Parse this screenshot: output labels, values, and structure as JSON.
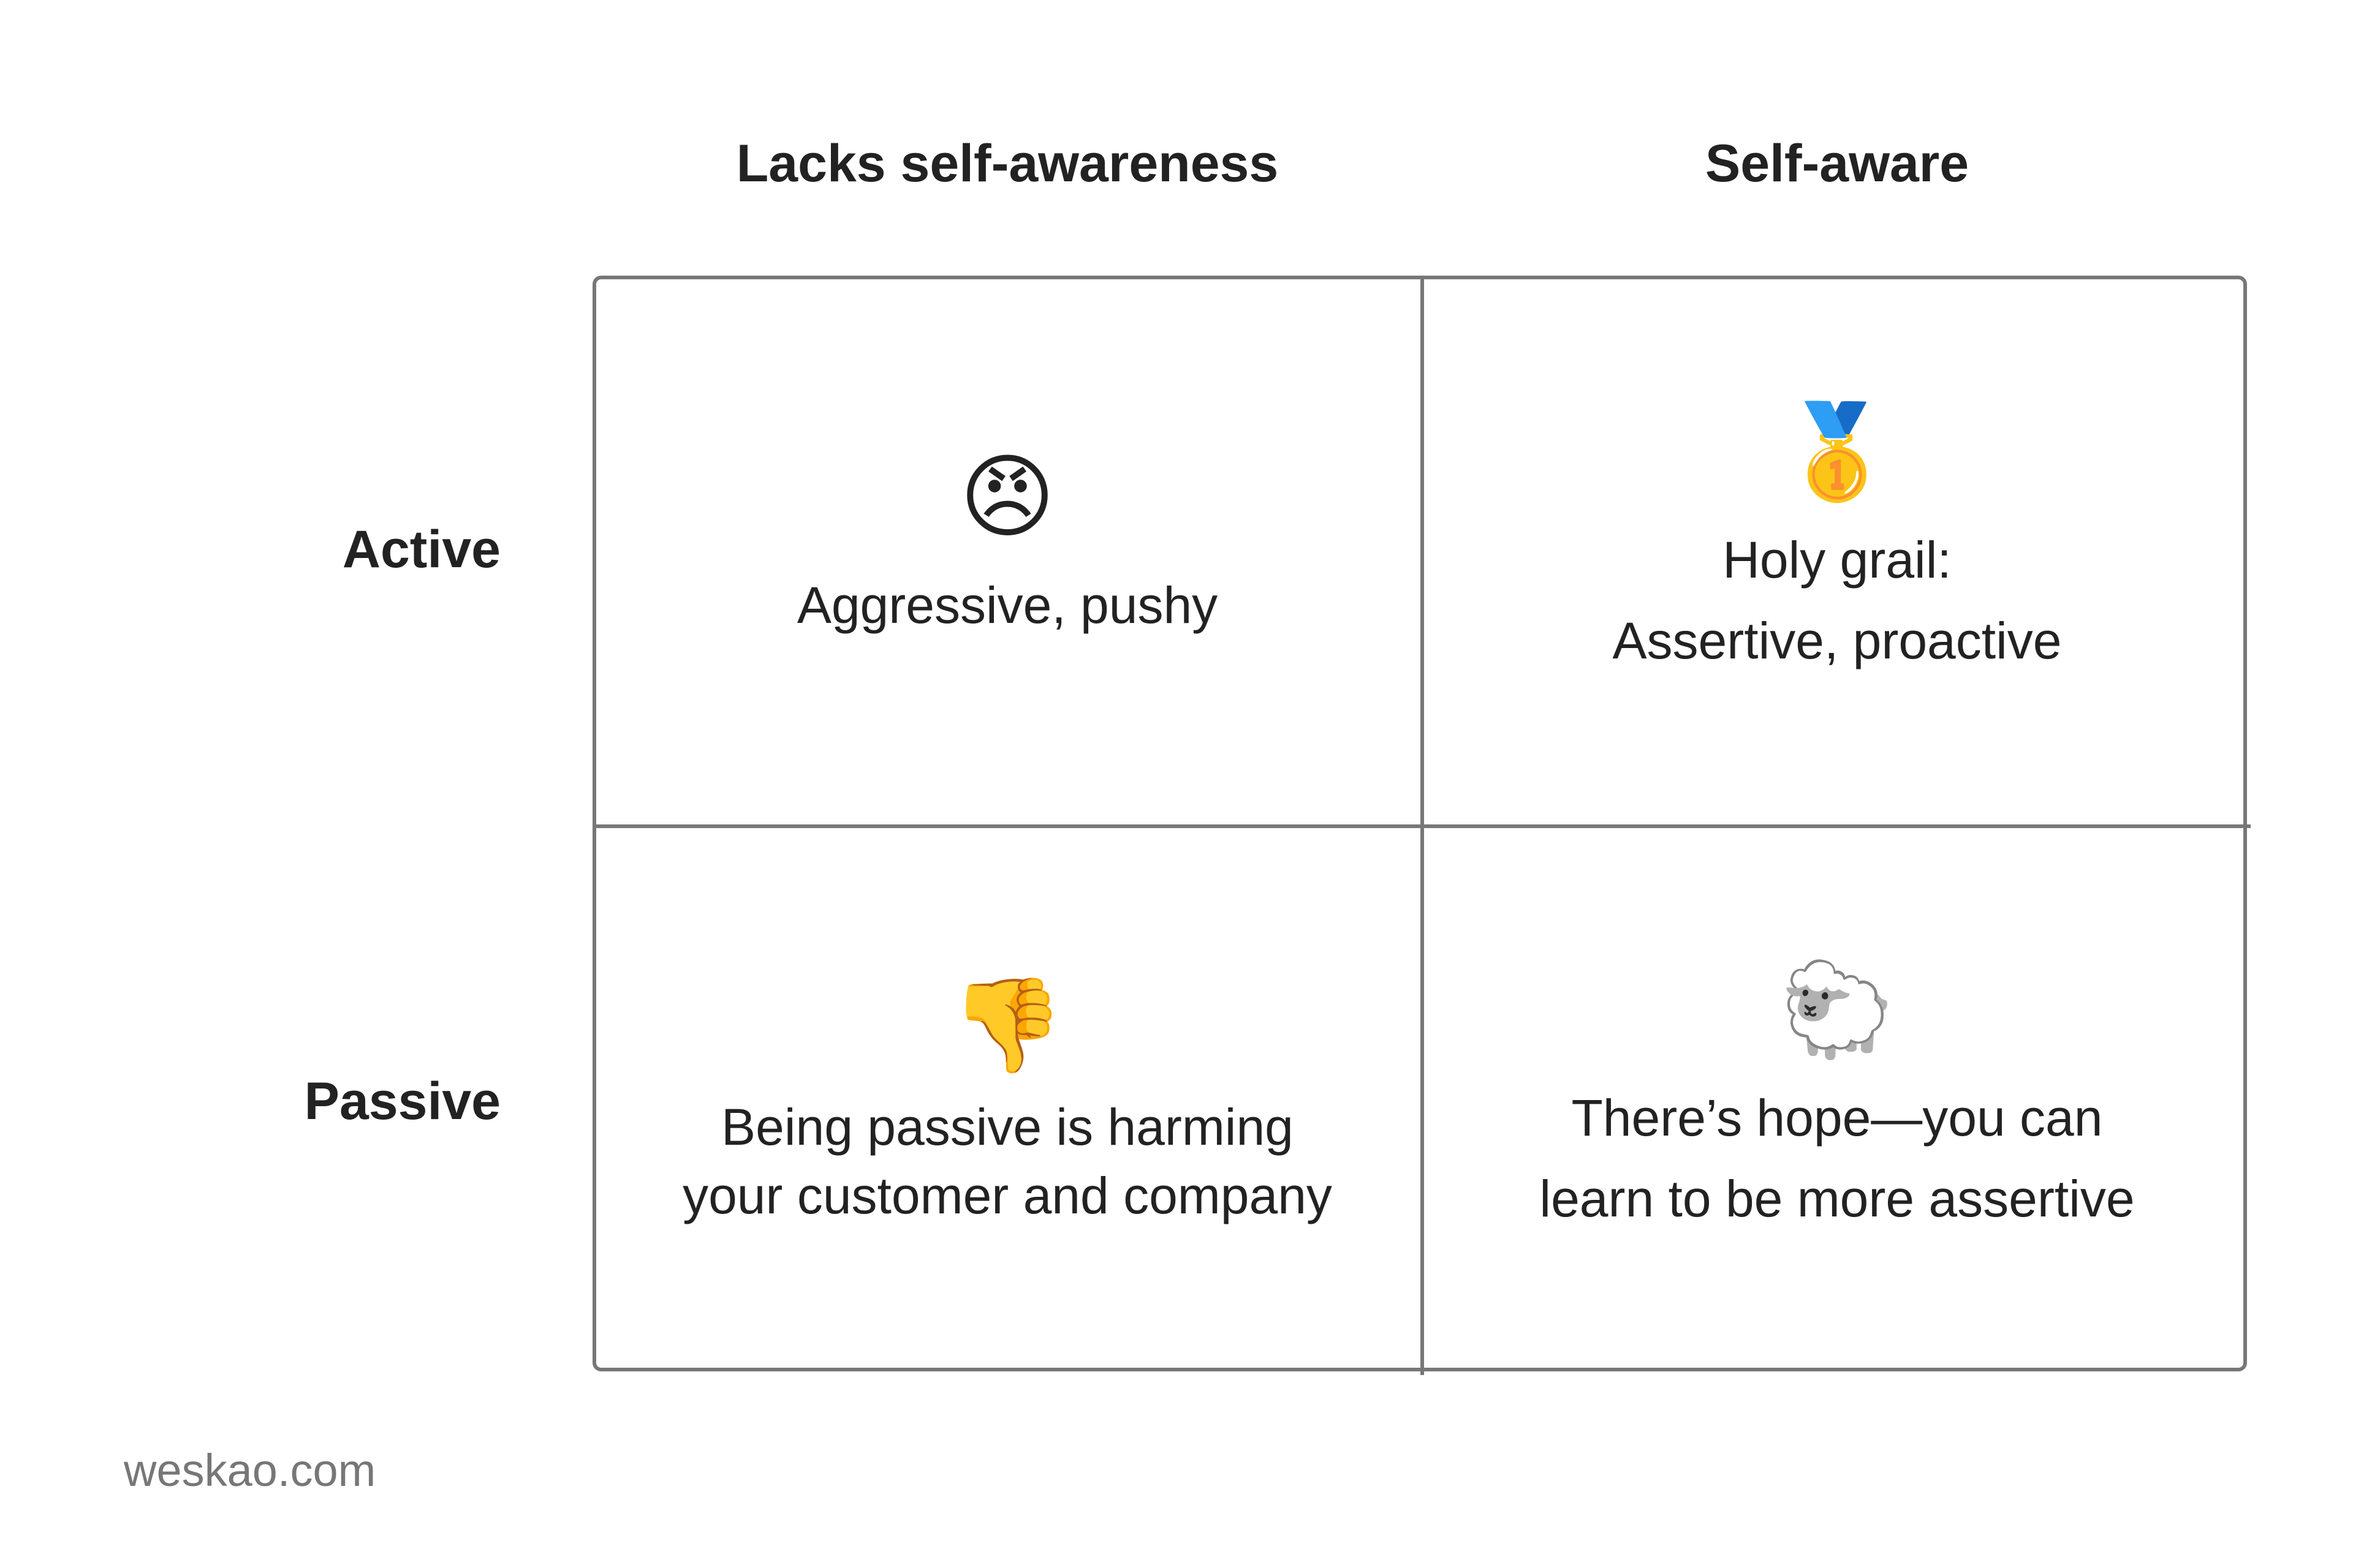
{
  "columns": [
    "Lacks self-awareness",
    "Self-aware"
  ],
  "rows": [
    "Active",
    "Passive"
  ],
  "cells": [
    [
      {
        "emoji": "😠",
        "lines": [
          "Aggressive, pushy"
        ]
      },
      {
        "emoji": "🥇",
        "lines": [
          "Holy grail:",
          "Assertive, proactive"
        ]
      }
    ],
    [
      {
        "emoji": "👎",
        "lines": [
          "Being passive is harming",
          "your customer and company"
        ]
      },
      {
        "emoji": "🐑",
        "lines": [
          "There’s hope—you can",
          "learn to be more assertive"
        ]
      }
    ]
  ],
  "footer": "weskao.com"
}
